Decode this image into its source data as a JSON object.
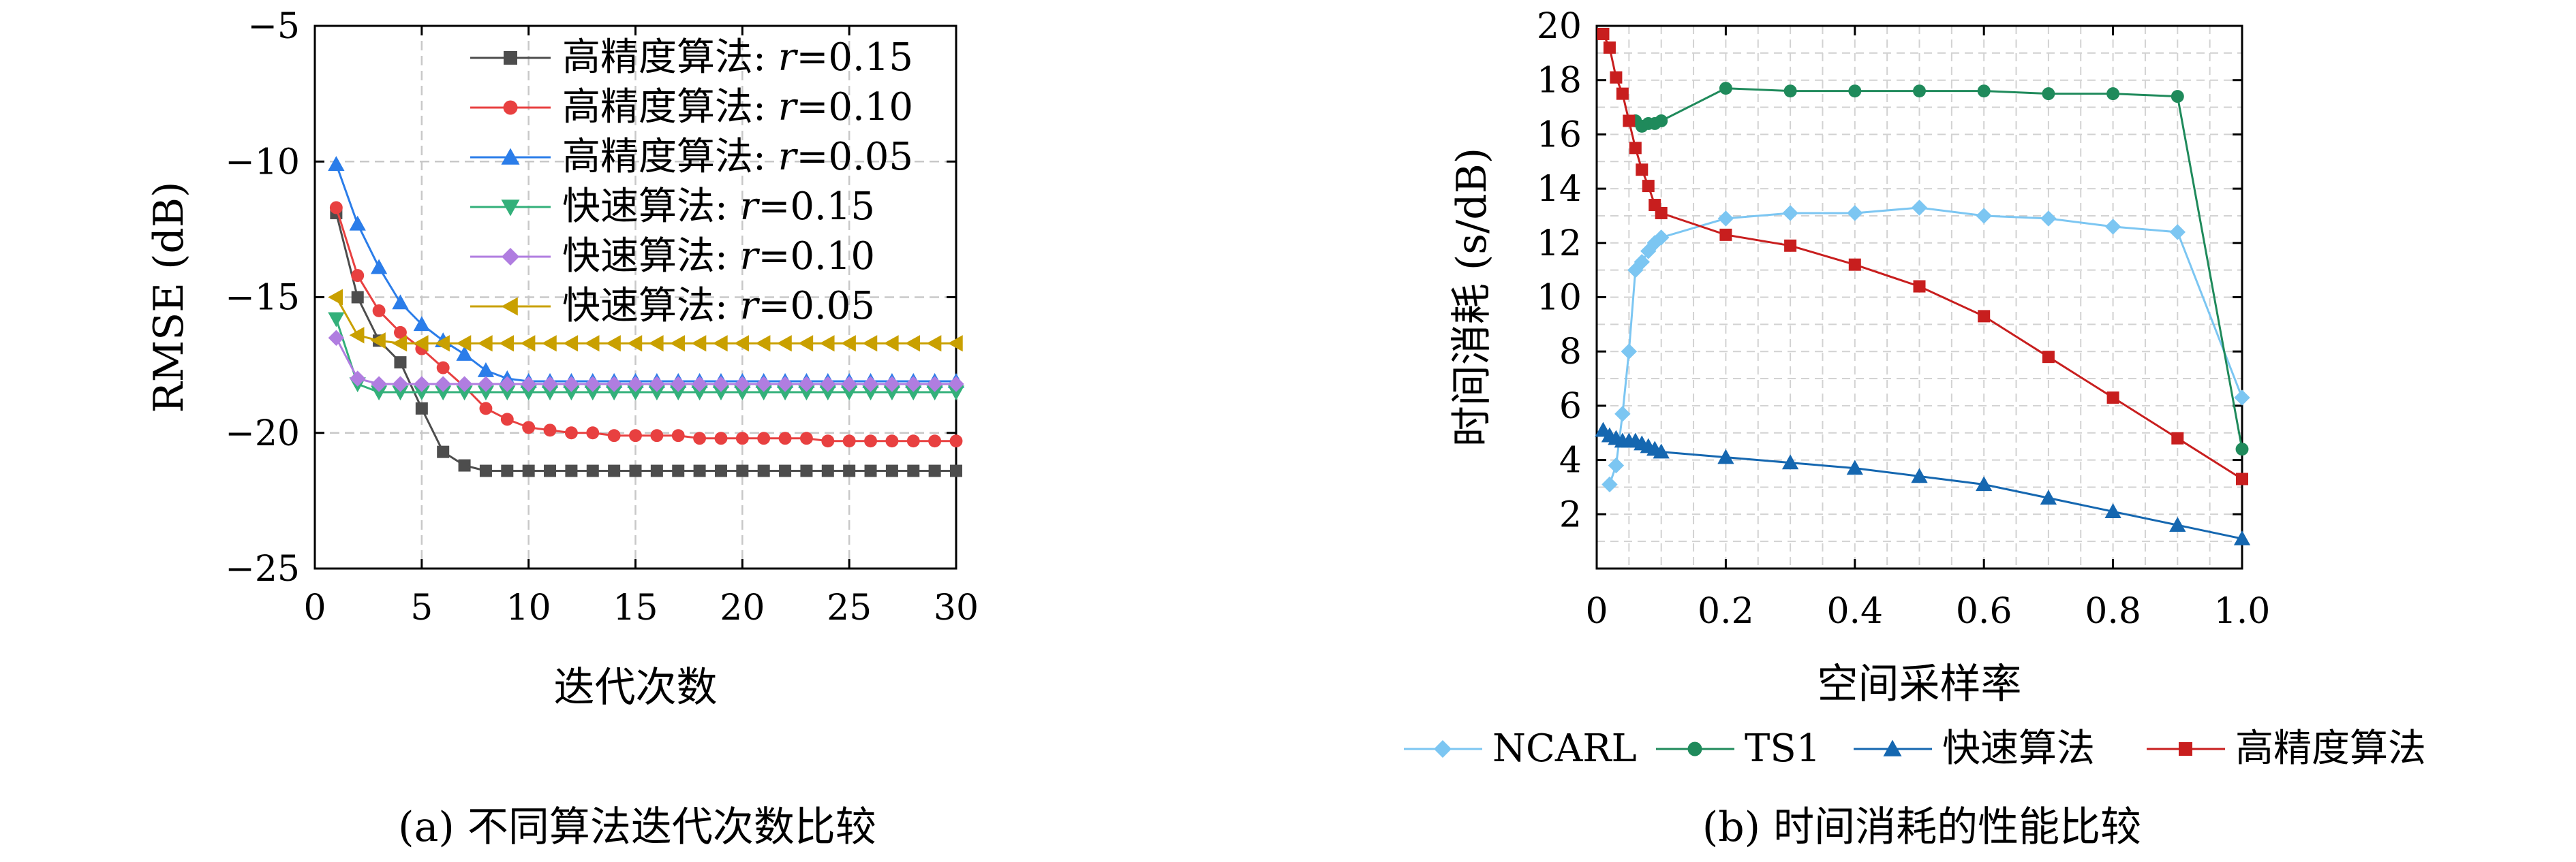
{
  "chart_data": [
    {
      "type": "line",
      "caption": "(a) 不同算法迭代次数比较",
      "xlabel": "迭代次数",
      "ylabel": "RMSE (dB)",
      "xlim": [
        0,
        30
      ],
      "ylim": [
        -25,
        -5
      ],
      "xticks": [
        "0",
        "5",
        "10",
        "15",
        "20",
        "25",
        "30"
      ],
      "yticks": [
        "-25",
        "-20",
        "-15",
        "-10",
        "-5"
      ],
      "grid": true,
      "legend_position": "top-right",
      "x": [
        1,
        2,
        3,
        4,
        5,
        6,
        7,
        8,
        9,
        10,
        11,
        12,
        13,
        14,
        15,
        16,
        17,
        18,
        19,
        20,
        21,
        22,
        23,
        24,
        25,
        26,
        27,
        28,
        29,
        30
      ],
      "series": [
        {
          "name_prefix": "高精度算法: ",
          "name_var": "r",
          "name_val": "=0.15",
          "color": "#4d4d4d",
          "marker": "square",
          "values": [
            -11.9,
            -15.0,
            -16.6,
            -17.4,
            -19.1,
            -20.7,
            -21.2,
            -21.4,
            -21.4,
            -21.4,
            -21.4,
            -21.4,
            -21.4,
            -21.4,
            -21.4,
            -21.4,
            -21.4,
            -21.4,
            -21.4,
            -21.4,
            -21.4,
            -21.4,
            -21.4,
            -21.4,
            -21.4,
            -21.4,
            -21.4,
            -21.4,
            -21.4,
            -21.4
          ]
        },
        {
          "name_prefix": "高精度算法: ",
          "name_var": "r",
          "name_val": "=0.10",
          "color": "#e84040",
          "marker": "circle",
          "values": [
            -11.7,
            -14.2,
            -15.5,
            -16.3,
            -16.9,
            -17.6,
            -18.3,
            -19.1,
            -19.5,
            -19.8,
            -19.9,
            -20.0,
            -20.0,
            -20.1,
            -20.1,
            -20.1,
            -20.1,
            -20.2,
            -20.2,
            -20.2,
            -20.2,
            -20.2,
            -20.2,
            -20.3,
            -20.3,
            -20.3,
            -20.3,
            -20.3,
            -20.3,
            -20.3
          ]
        },
        {
          "name_prefix": "高精度算法: ",
          "name_var": "r",
          "name_val": "=0.05",
          "color": "#2b7de9",
          "marker": "triangle",
          "values": [
            -10.1,
            -12.3,
            -13.9,
            -15.2,
            -16.0,
            -16.6,
            -17.1,
            -17.7,
            -18.0,
            -18.1,
            -18.1,
            -18.1,
            -18.1,
            -18.1,
            -18.1,
            -18.1,
            -18.1,
            -18.1,
            -18.1,
            -18.1,
            -18.1,
            -18.1,
            -18.1,
            -18.1,
            -18.1,
            -18.1,
            -18.1,
            -18.1,
            -18.1,
            -18.1
          ]
        },
        {
          "name_prefix": "快速算法: ",
          "name_var": "r",
          "name_val": "=0.15",
          "color": "#33b07a",
          "marker": "triangle-down",
          "values": [
            -15.8,
            -18.2,
            -18.5,
            -18.5,
            -18.5,
            -18.5,
            -18.5,
            -18.5,
            -18.5,
            -18.5,
            -18.5,
            -18.5,
            -18.5,
            -18.5,
            -18.5,
            -18.5,
            -18.5,
            -18.5,
            -18.5,
            -18.5,
            -18.5,
            -18.5,
            -18.5,
            -18.5,
            -18.5,
            -18.5,
            -18.5,
            -18.5,
            -18.5,
            -18.5
          ]
        },
        {
          "name_prefix": "快速算法: ",
          "name_var": "r",
          "name_val": "=0.10",
          "color": "#b07de0",
          "marker": "diamond",
          "values": [
            -16.5,
            -18.0,
            -18.2,
            -18.2,
            -18.2,
            -18.2,
            -18.2,
            -18.2,
            -18.2,
            -18.2,
            -18.2,
            -18.2,
            -18.2,
            -18.2,
            -18.2,
            -18.2,
            -18.2,
            -18.2,
            -18.2,
            -18.2,
            -18.2,
            -18.2,
            -18.2,
            -18.2,
            -18.2,
            -18.2,
            -18.2,
            -18.2,
            -18.2,
            -18.2
          ]
        },
        {
          "name_prefix": "快速算法: ",
          "name_var": "r",
          "name_val": "=0.05",
          "color": "#c9a000",
          "marker": "triangle-left",
          "values": [
            -15.0,
            -16.4,
            -16.6,
            -16.7,
            -16.7,
            -16.7,
            -16.7,
            -16.7,
            -16.7,
            -16.7,
            -16.7,
            -16.7,
            -16.7,
            -16.7,
            -16.7,
            -16.7,
            -16.7,
            -16.7,
            -16.7,
            -16.7,
            -16.7,
            -16.7,
            -16.7,
            -16.7,
            -16.7,
            -16.7,
            -16.7,
            -16.7,
            -16.7,
            -16.7
          ]
        }
      ]
    },
    {
      "type": "line",
      "caption": "(b) 时间消耗的性能比较",
      "xlabel": "空间采样率",
      "ylabel": "时间消耗 (s/dB)",
      "xlim": [
        0,
        1
      ],
      "ylim": [
        0,
        20
      ],
      "xticks": [
        "0",
        "0.2",
        "0.4",
        "0.6",
        "0.8",
        "1.0"
      ],
      "yticks": [
        "2",
        "4",
        "6",
        "8",
        "10",
        "12",
        "14",
        "16",
        "18",
        "20"
      ],
      "grid": true,
      "legend_position": "bottom",
      "series": [
        {
          "name": "NCARL",
          "color": "#7cc6f2",
          "marker": "diamond",
          "x": [
            0.02,
            0.03,
            0.04,
            0.05,
            0.06,
            0.07,
            0.08,
            0.09,
            0.1,
            0.2,
            0.3,
            0.4,
            0.5,
            0.6,
            0.7,
            0.8,
            0.9,
            1.0
          ],
          "values": [
            3.1,
            3.8,
            5.7,
            8.0,
            11.0,
            11.3,
            11.7,
            12.0,
            12.2,
            12.9,
            13.1,
            13.1,
            13.3,
            13.0,
            12.9,
            12.6,
            12.4,
            6.3
          ]
        },
        {
          "name": "TS1",
          "color": "#1f8a5b",
          "marker": "circle",
          "x": [
            0.06,
            0.07,
            0.08,
            0.09,
            0.1,
            0.2,
            0.3,
            0.4,
            0.5,
            0.6,
            0.7,
            0.8,
            0.9,
            1.0
          ],
          "values": [
            16.5,
            16.3,
            16.4,
            16.4,
            16.5,
            17.7,
            17.6,
            17.6,
            17.6,
            17.6,
            17.5,
            17.5,
            17.4,
            4.4
          ]
        },
        {
          "name": "快速算法",
          "color": "#1567b0",
          "marker": "triangle",
          "x": [
            0.01,
            0.02,
            0.03,
            0.04,
            0.05,
            0.06,
            0.07,
            0.08,
            0.09,
            0.1,
            0.2,
            0.3,
            0.4,
            0.5,
            0.6,
            0.7,
            0.8,
            0.9,
            1.0
          ],
          "values": [
            5.1,
            4.9,
            4.8,
            4.7,
            4.7,
            4.7,
            4.6,
            4.5,
            4.4,
            4.3,
            4.1,
            3.9,
            3.7,
            3.4,
            3.1,
            2.6,
            2.1,
            1.6,
            1.1
          ]
        },
        {
          "name": "高精度算法",
          "color": "#c81e1e",
          "marker": "square",
          "x": [
            0.01,
            0.02,
            0.03,
            0.04,
            0.05,
            0.06,
            0.07,
            0.08,
            0.09,
            0.1,
            0.2,
            0.3,
            0.4,
            0.5,
            0.6,
            0.7,
            0.8,
            0.9,
            1.0
          ],
          "values": [
            19.7,
            19.2,
            18.1,
            17.5,
            16.5,
            15.5,
            14.7,
            14.1,
            13.4,
            13.1,
            12.3,
            11.9,
            11.2,
            10.4,
            9.3,
            7.8,
            6.3,
            4.8,
            3.3
          ]
        }
      ]
    }
  ]
}
